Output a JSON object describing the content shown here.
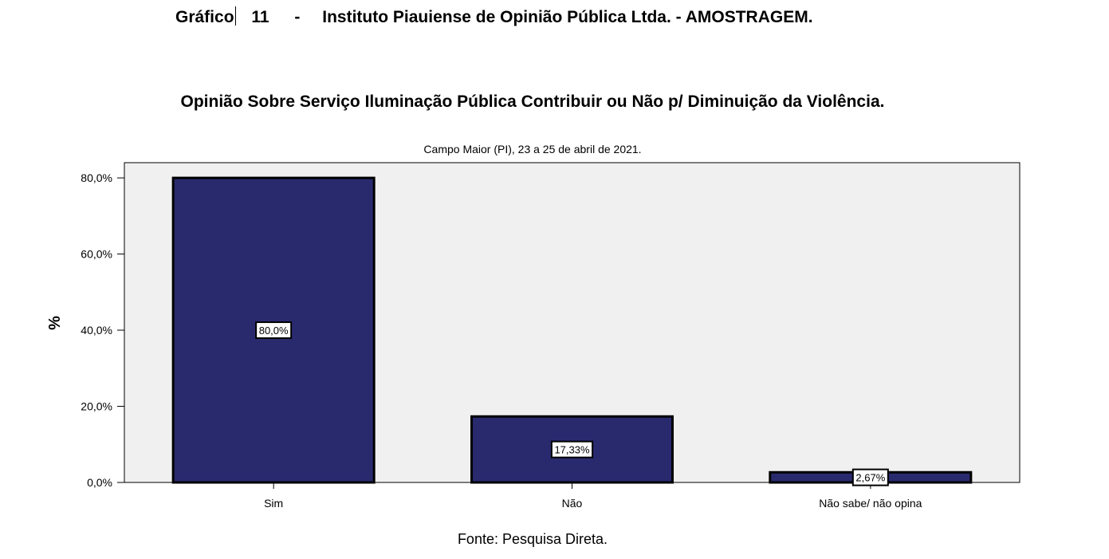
{
  "header": {
    "label": "Gráfico",
    "number": "11",
    "separator": "-",
    "text": "Instituto Piauiense de Opinião Pública Ltda. - AMOSTRAGEM."
  },
  "source": "Fonte: Pesquisa Direta.",
  "chart_data": {
    "type": "bar",
    "title": "Opinião Sobre Serviço Iluminação Pública Contribuir ou Não p/ Diminuição da Violência.",
    "subtitle": "Campo Maior (PI), 23 a 25 de abril de 2021.",
    "xlabel": "",
    "ylabel": "%",
    "categories": [
      "Sim",
      "Não",
      "Não sabe/ não opina"
    ],
    "values": [
      80.0,
      17.33,
      2.67
    ],
    "data_labels": [
      "80,0%",
      "17,33%",
      "2,67%"
    ],
    "ylim": [
      0,
      84
    ],
    "yticks": [
      0,
      20,
      40,
      60,
      80
    ],
    "ytick_labels": [
      "0,0%",
      "20,0%",
      "40,0%",
      "60,0%",
      "80,0%"
    ],
    "grid": false,
    "colors": {
      "bar": "#292a6e",
      "plot_bg": "#f0f0f0",
      "bar_edge": "#000000"
    }
  }
}
